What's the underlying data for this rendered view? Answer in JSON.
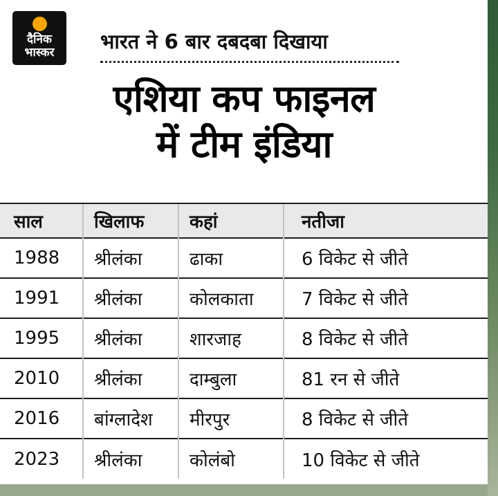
{
  "logo": {
    "line1": "दैनिक",
    "line2": "भास्कर"
  },
  "kicker": "भारत ने 6 बार दबदबा दिखाया",
  "title": {
    "line1": "एशिया कप फाइनल",
    "line2": "में टीम इंडिया"
  },
  "chart_data": {
    "type": "table",
    "title": "एशिया कप फाइनल में टीम इंडिया",
    "subtitle": "भारत ने 6 बार दबदबा दिखाया",
    "columns": [
      "साल",
      "खिलाफ",
      "कहां",
      "नतीजा"
    ],
    "rows": [
      [
        "1988",
        "श्रीलंका",
        "ढाका",
        "6 विकेट से जीते"
      ],
      [
        "1991",
        "श्रीलंका",
        "कोलकाता",
        "7 विकेट से जीते"
      ],
      [
        "1995",
        "श्रीलंका",
        "शारजाह",
        "8 विकेट से जीते"
      ],
      [
        "2010",
        "श्रीलंका",
        "दाम्बुला",
        "81 रन से जीते"
      ],
      [
        "2016",
        "बांग्लादेश",
        "मीरपुर",
        "8 विकेट से जीते"
      ],
      [
        "2023",
        "श्रीलंका",
        "कोलंबो",
        "10 विकेट से जीते"
      ]
    ]
  },
  "colors": {
    "logo_bg": "#101010",
    "logo_dot": "#f7a600",
    "header_row_bg": "#e9e9e9",
    "row_line": "#1c1c1c",
    "column_line": "#c3c3c3",
    "strip_green_dark": "#2e5c36",
    "strip_green_light": "#a9b59c",
    "bottom_strip": "#97a78e"
  }
}
